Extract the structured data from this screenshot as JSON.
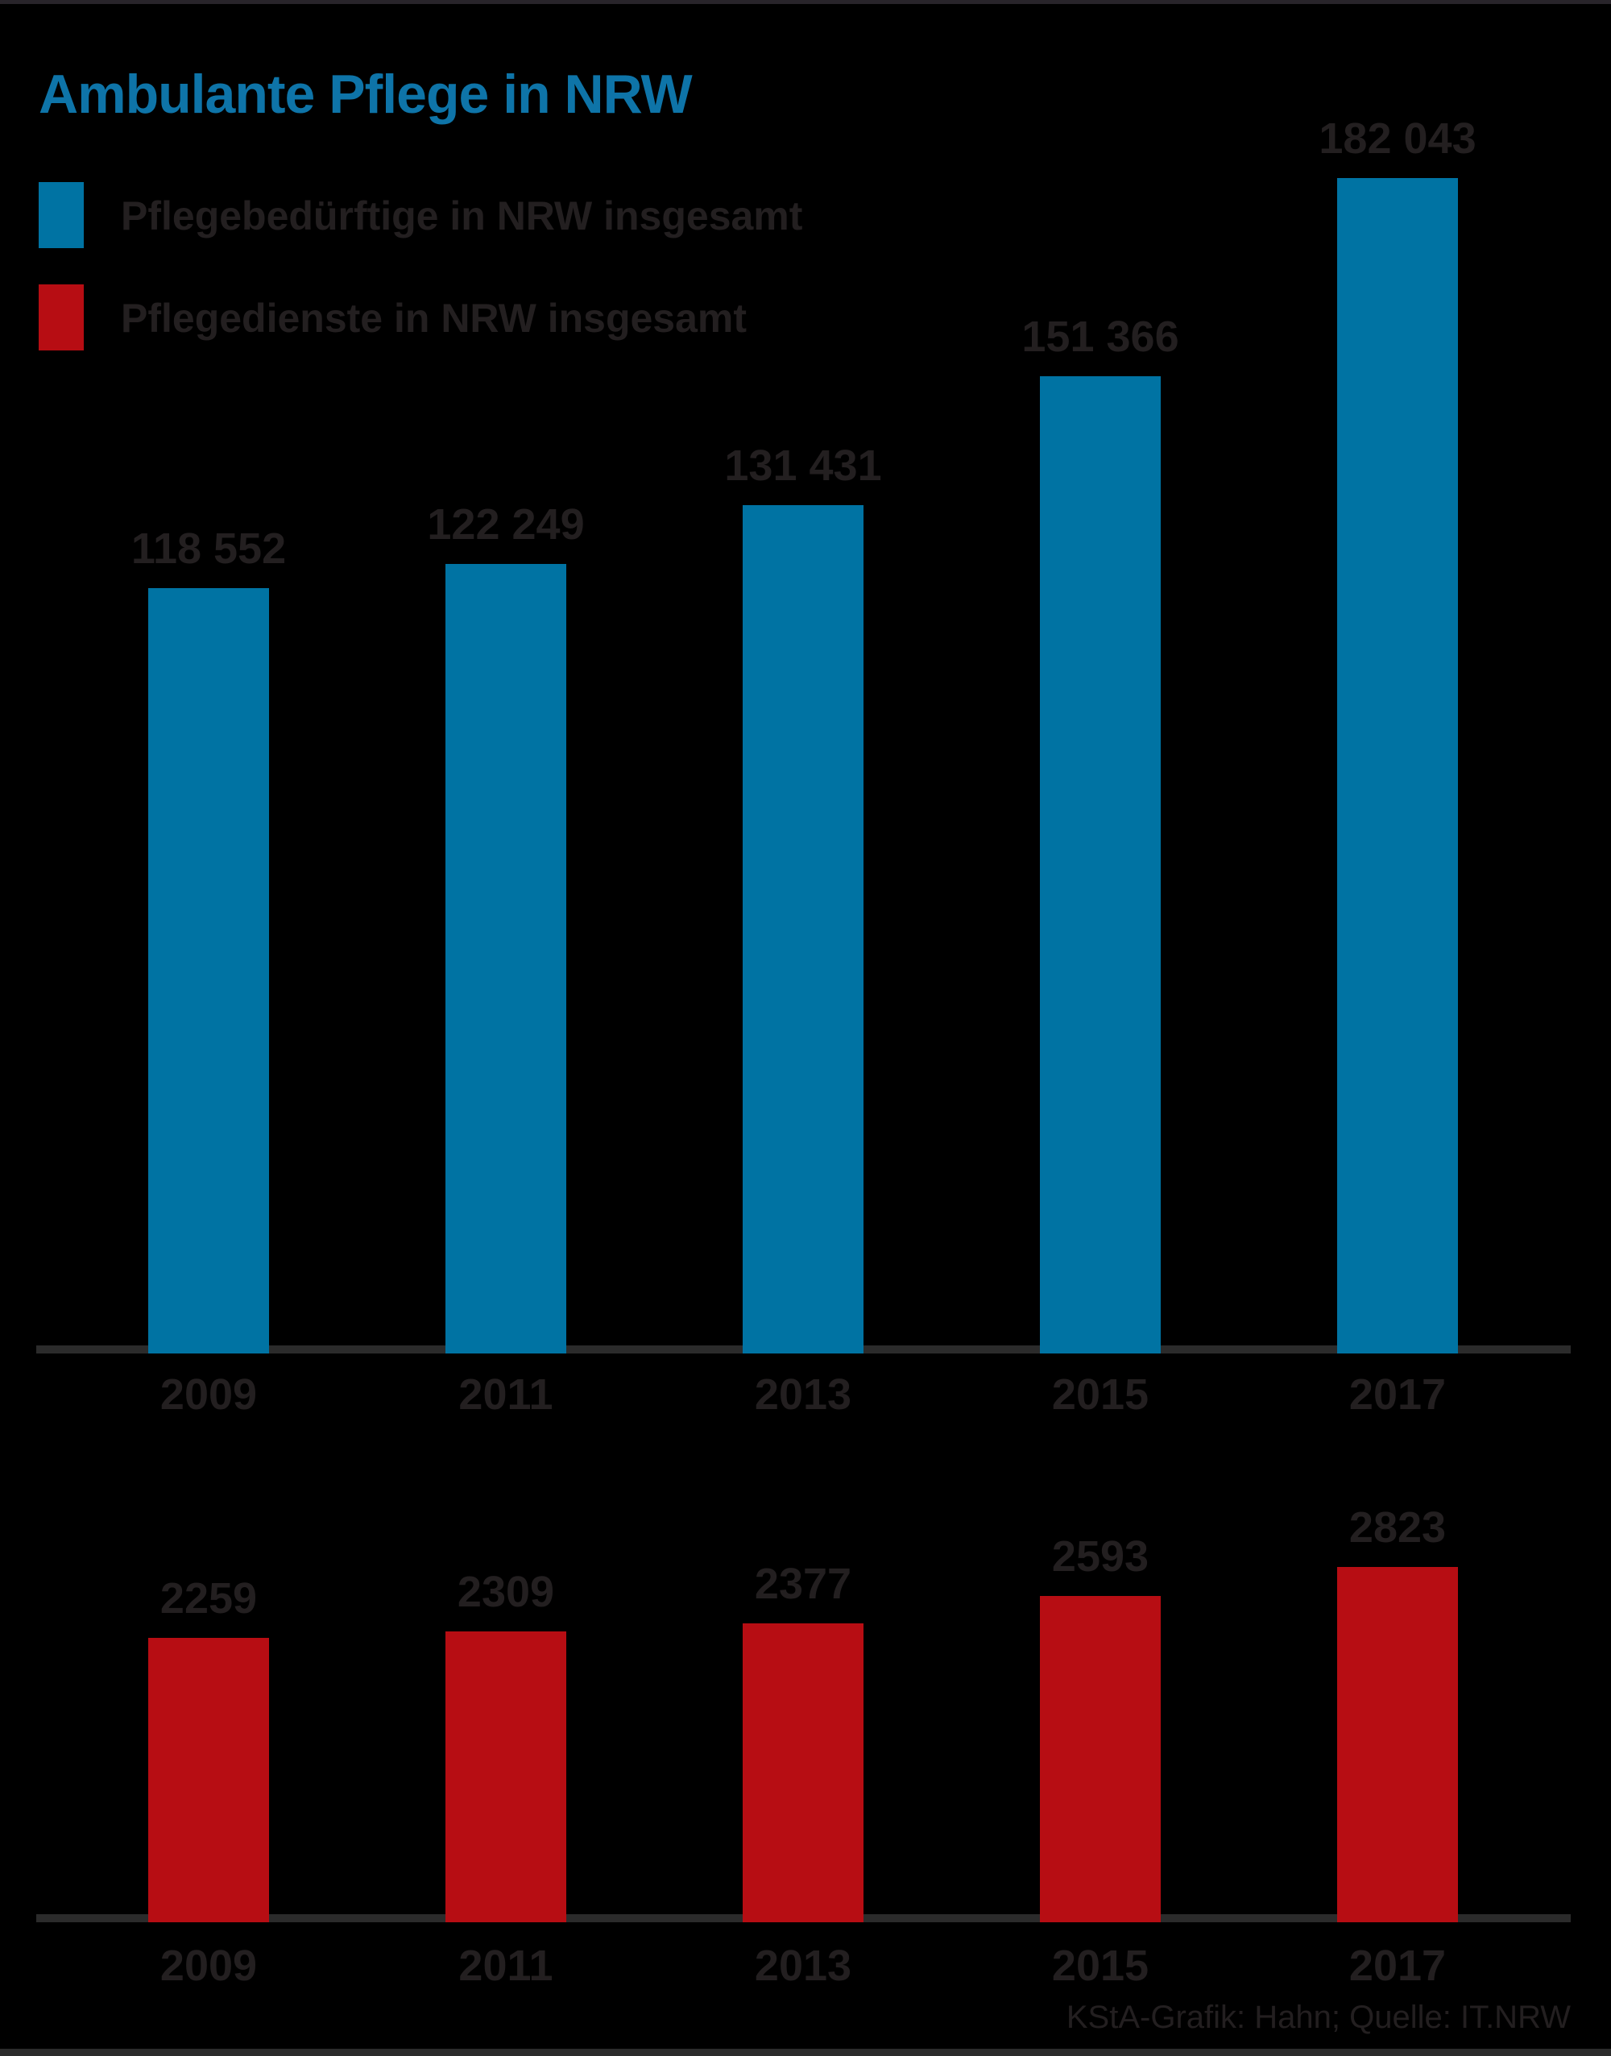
{
  "title": "Ambulante Pflege in NRW",
  "legend": {
    "items": [
      {
        "label": "Pflegebedürftige in NRW insgesamt",
        "color": "#0073a3",
        "swatch": "blue-square"
      },
      {
        "label": "Pflegedienste in NRW insgesamt",
        "color": "#b70d13",
        "swatch": "red-square"
      }
    ]
  },
  "footer": {
    "credit": "KStA-Grafik: Hahn; Quelle: IT.NRW"
  },
  "colors": {
    "title_blue": "#0e74a8",
    "bar_blue": "#0073a3",
    "bar_red": "#b70d13",
    "text_dark": "#231f20",
    "axis_line": "#2b2b2b",
    "background": "#000000"
  },
  "chart_data": [
    {
      "type": "bar",
      "name": "Pflegebedürftige in NRW insgesamt",
      "categories": [
        "2009",
        "2011",
        "2013",
        "2015",
        "2017"
      ],
      "values": [
        118552,
        122249,
        131431,
        151366,
        182043
      ],
      "value_labels": [
        "118 552",
        "122 249",
        "131 431",
        "151 366",
        "182 043"
      ],
      "bar_color": "#0073a3",
      "ylim": [
        0,
        190000
      ],
      "grid": false,
      "value_labels_position": "above-bars",
      "x_axis_labels_position": "below-baseline"
    },
    {
      "type": "bar",
      "name": "Pflegedienste in NRW insgesamt",
      "categories": [
        "2009",
        "2011",
        "2013",
        "2015",
        "2017"
      ],
      "values": [
        2259,
        2309,
        2377,
        2593,
        2823
      ],
      "value_labels": [
        "2259",
        "2309",
        "2377",
        "2593",
        "2823"
      ],
      "bar_color": "#b70d13",
      "ylim": [
        0,
        2950
      ],
      "grid": false,
      "value_labels_position": "above-bars",
      "x_axis_labels_position": "below-baseline"
    }
  ]
}
